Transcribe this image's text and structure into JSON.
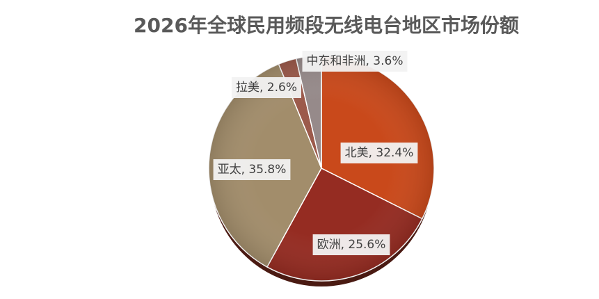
{
  "chart_data": {
    "type": "pie",
    "title": "2026年全球民用频段无线电台地区市场份额",
    "values": [
      32.4,
      25.6,
      35.8,
      2.6,
      3.6
    ],
    "value_labels": [
      "北美, 32.4%",
      "欧洲, 25.6%",
      "亚太, 35.8%",
      "拉美, 2.6%",
      "中东和非洲, 3.6%"
    ],
    "colors": [
      "#c9491b",
      "#952c22",
      "#a28d6b",
      "#9c5a4b",
      "#968a8a"
    ]
  }
}
